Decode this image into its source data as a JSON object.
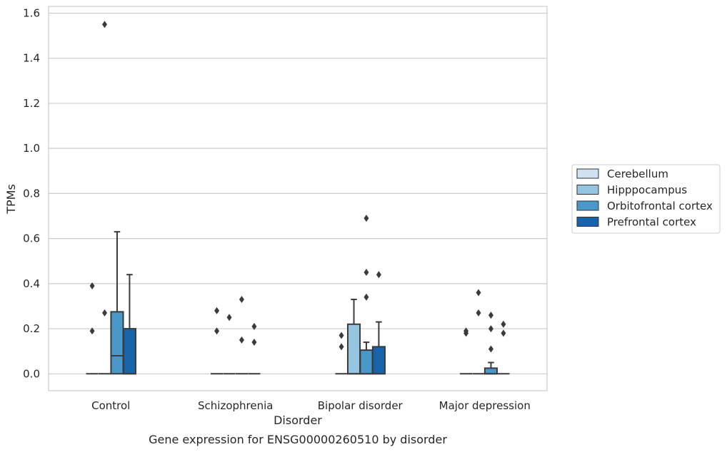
{
  "chart_data": {
    "type": "box",
    "caption": "Gene expression for ENSG00000260510 by disorder",
    "xlabel": "Disorder",
    "ylabel": "TPMs",
    "ylim": [
      -0.075,
      1.63
    ],
    "yticks": [
      "0.0",
      "0.2",
      "0.4",
      "0.6",
      "0.8",
      "1.0",
      "1.2",
      "1.4",
      "1.6"
    ],
    "grid": "horizontal",
    "legend_position": "right",
    "categories": [
      "Control",
      "Schizophrenia",
      "Bipolar disorder",
      "Major depression"
    ],
    "series": [
      {
        "name": "Cerebellum",
        "color": "#d0e1f2",
        "boxes": [
          {
            "q1": 0,
            "median": 0,
            "q3": 0,
            "whisker_low": 0,
            "whisker_high": 0,
            "outliers": [
              0.19,
              0.39
            ]
          },
          {
            "q1": 0,
            "median": 0,
            "q3": 0,
            "whisker_low": 0,
            "whisker_high": 0,
            "outliers": [
              0.19,
              0.28
            ]
          },
          {
            "q1": 0,
            "median": 0,
            "q3": 0,
            "whisker_low": 0,
            "whisker_high": 0,
            "outliers": [
              0.12,
              0.17
            ]
          },
          {
            "q1": 0,
            "median": 0,
            "q3": 0,
            "whisker_low": 0,
            "whisker_high": 0,
            "outliers": [
              0.18,
              0.19
            ]
          }
        ]
      },
      {
        "name": "Hipppocampus",
        "color": "#94c4df",
        "boxes": [
          {
            "q1": 0,
            "median": 0,
            "q3": 0,
            "whisker_low": 0,
            "whisker_high": 0,
            "outliers": [
              0.27,
              1.55
            ]
          },
          {
            "q1": 0,
            "median": 0,
            "q3": 0,
            "whisker_low": 0,
            "whisker_high": 0,
            "outliers": [
              0.25
            ]
          },
          {
            "q1": 0,
            "median": 0,
            "q3": 0.22,
            "whisker_low": 0,
            "whisker_high": 0.33,
            "outliers": []
          },
          {
            "q1": 0,
            "median": 0,
            "q3": 0,
            "whisker_low": 0,
            "whisker_high": 0,
            "outliers": [
              0.27,
              0.36
            ]
          }
        ]
      },
      {
        "name": "Orbitofrontal cortex",
        "color": "#4a98c9",
        "boxes": [
          {
            "q1": 0,
            "median": 0.08,
            "q3": 0.275,
            "whisker_low": 0,
            "whisker_high": 0.63,
            "outliers": []
          },
          {
            "q1": 0,
            "median": 0,
            "q3": 0,
            "whisker_low": 0,
            "whisker_high": 0,
            "outliers": [
              0.15,
              0.33
            ]
          },
          {
            "q1": 0,
            "median": 0,
            "q3": 0.105,
            "whisker_low": 0,
            "whisker_high": 0.14,
            "outliers": [
              0.34,
              0.45,
              0.69
            ]
          },
          {
            "q1": 0,
            "median": 0,
            "q3": 0.025,
            "whisker_low": 0,
            "whisker_high": 0.05,
            "outliers": [
              0.11,
              0.2,
              0.26
            ]
          }
        ]
      },
      {
        "name": "Prefrontal cortex",
        "color": "#1764ab",
        "boxes": [
          {
            "q1": 0,
            "median": 0,
            "q3": 0.2,
            "whisker_low": 0,
            "whisker_high": 0.44,
            "outliers": []
          },
          {
            "q1": 0,
            "median": 0,
            "q3": 0,
            "whisker_low": 0,
            "whisker_high": 0,
            "outliers": [
              0.14,
              0.21
            ]
          },
          {
            "q1": 0,
            "median": 0,
            "q3": 0.12,
            "whisker_low": 0,
            "whisker_high": 0.23,
            "outliers": [
              0.44
            ]
          },
          {
            "q1": 0,
            "median": 0,
            "q3": 0,
            "whisker_low": 0,
            "whisker_high": 0,
            "outliers": [
              0.18,
              0.22
            ]
          }
        ]
      }
    ]
  }
}
